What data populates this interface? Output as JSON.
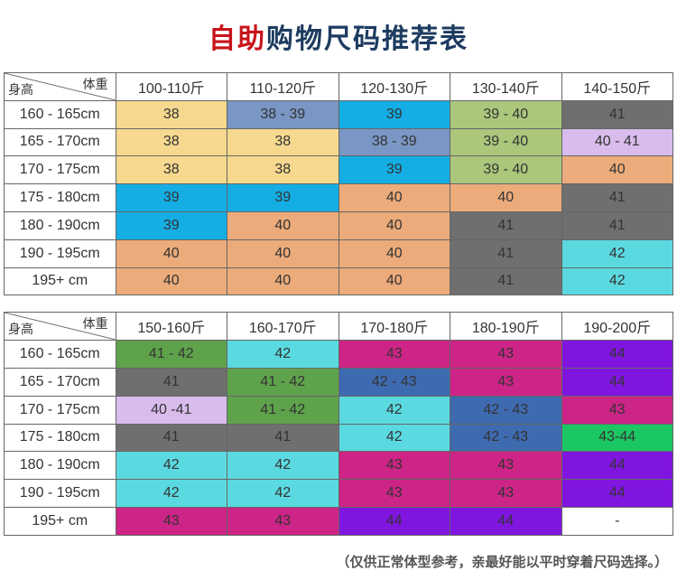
{
  "title": {
    "red": "自助",
    "blue": "购物尺码推荐表"
  },
  "labels": {
    "weight": "体重",
    "height": "身高"
  },
  "footnote": "（仅供正常体型参考，亲最好能以平时穿着尺码选择。）",
  "colors": {
    "yellow": "#f6d98f",
    "slateblue": "#7a96c4",
    "cyan": "#14aee4",
    "olive": "#aac77c",
    "gray": "#6f6f6f",
    "lilac": "#d9bcec",
    "orange": "#ecab7a",
    "turq": "#5bd9e0",
    "green": "#5fa24c",
    "magenta": "#cd2487",
    "blue2": "#3e6bb0",
    "purple": "#8015e0",
    "green2": "#1bc763",
    "white": "#ffffff"
  },
  "table1": {
    "columns": [
      "100-110斤",
      "110-120斤",
      "120-130斤",
      "130-140斤",
      "140-150斤"
    ],
    "rows": [
      {
        "h": "160 - 165cm",
        "cells": [
          {
            "v": "38",
            "c": "yellow"
          },
          {
            "v": "38 - 39",
            "c": "slateblue"
          },
          {
            "v": "39",
            "c": "cyan"
          },
          {
            "v": "39 - 40",
            "c": "olive"
          },
          {
            "v": "41",
            "c": "gray"
          }
        ]
      },
      {
        "h": "165 - 170cm",
        "cells": [
          {
            "v": "38",
            "c": "yellow"
          },
          {
            "v": "38",
            "c": "yellow"
          },
          {
            "v": "38 - 39",
            "c": "slateblue"
          },
          {
            "v": "39 - 40",
            "c": "olive"
          },
          {
            "v": "40 - 41",
            "c": "lilac"
          }
        ]
      },
      {
        "h": "170 - 175cm",
        "cells": [
          {
            "v": "38",
            "c": "yellow"
          },
          {
            "v": "38",
            "c": "yellow"
          },
          {
            "v": "39",
            "c": "cyan"
          },
          {
            "v": "39 - 40",
            "c": "olive"
          },
          {
            "v": "40",
            "c": "orange"
          }
        ]
      },
      {
        "h": "175 - 180cm",
        "cells": [
          {
            "v": "39",
            "c": "cyan"
          },
          {
            "v": "39",
            "c": "cyan"
          },
          {
            "v": "40",
            "c": "orange"
          },
          {
            "v": "40",
            "c": "orange"
          },
          {
            "v": "41",
            "c": "gray"
          }
        ]
      },
      {
        "h": "180 - 190cm",
        "cells": [
          {
            "v": "39",
            "c": "cyan"
          },
          {
            "v": "40",
            "c": "orange"
          },
          {
            "v": "40",
            "c": "orange"
          },
          {
            "v": "41",
            "c": "gray"
          },
          {
            "v": "41",
            "c": "gray"
          }
        ]
      },
      {
        "h": "190 - 195cm",
        "cells": [
          {
            "v": "40",
            "c": "orange"
          },
          {
            "v": "40",
            "c": "orange"
          },
          {
            "v": "40",
            "c": "orange"
          },
          {
            "v": "41",
            "c": "gray"
          },
          {
            "v": "42",
            "c": "turq"
          }
        ]
      },
      {
        "h": "195+ cm",
        "cells": [
          {
            "v": "40",
            "c": "orange"
          },
          {
            "v": "40",
            "c": "orange"
          },
          {
            "v": "40",
            "c": "orange"
          },
          {
            "v": "41",
            "c": "gray"
          },
          {
            "v": "42",
            "c": "turq"
          }
        ]
      }
    ]
  },
  "table2": {
    "columns": [
      "150-160斤",
      "160-170斤",
      "170-180斤",
      "180-190斤",
      "190-200斤"
    ],
    "rows": [
      {
        "h": "160 - 165cm",
        "cells": [
          {
            "v": "41 - 42",
            "c": "green"
          },
          {
            "v": "42",
            "c": "turq"
          },
          {
            "v": "43",
            "c": "magenta"
          },
          {
            "v": "43",
            "c": "magenta"
          },
          {
            "v": "44",
            "c": "purple"
          }
        ]
      },
      {
        "h": "165 - 170cm",
        "cells": [
          {
            "v": "41",
            "c": "gray"
          },
          {
            "v": "41 - 42",
            "c": "green"
          },
          {
            "v": "42 - 43",
            "c": "blue2"
          },
          {
            "v": "43",
            "c": "magenta"
          },
          {
            "v": "44",
            "c": "purple"
          }
        ]
      },
      {
        "h": "170 - 175cm",
        "cells": [
          {
            "v": "40 -41",
            "c": "lilac"
          },
          {
            "v": "41 - 42",
            "c": "green"
          },
          {
            "v": "42",
            "c": "turq"
          },
          {
            "v": "42 - 43",
            "c": "blue2"
          },
          {
            "v": "43",
            "c": "magenta"
          }
        ]
      },
      {
        "h": "175 - 180cm",
        "cells": [
          {
            "v": "41",
            "c": "gray"
          },
          {
            "v": "41",
            "c": "gray"
          },
          {
            "v": "42",
            "c": "turq"
          },
          {
            "v": "42 - 43",
            "c": "blue2"
          },
          {
            "v": "43-44",
            "c": "green2"
          }
        ]
      },
      {
        "h": "180 - 190cm",
        "cells": [
          {
            "v": "42",
            "c": "turq"
          },
          {
            "v": "42",
            "c": "turq"
          },
          {
            "v": "43",
            "c": "magenta"
          },
          {
            "v": "43",
            "c": "magenta"
          },
          {
            "v": "44",
            "c": "purple"
          }
        ]
      },
      {
        "h": "190 - 195cm",
        "cells": [
          {
            "v": "42",
            "c": "turq"
          },
          {
            "v": "42",
            "c": "turq"
          },
          {
            "v": "43",
            "c": "magenta"
          },
          {
            "v": "43",
            "c": "magenta"
          },
          {
            "v": "44",
            "c": "purple"
          }
        ]
      },
      {
        "h": "195+ cm",
        "cells": [
          {
            "v": "43",
            "c": "magenta"
          },
          {
            "v": "43",
            "c": "magenta"
          },
          {
            "v": "44",
            "c": "purple"
          },
          {
            "v": "44",
            "c": "purple"
          },
          {
            "v": "-",
            "c": "white"
          }
        ]
      }
    ]
  }
}
